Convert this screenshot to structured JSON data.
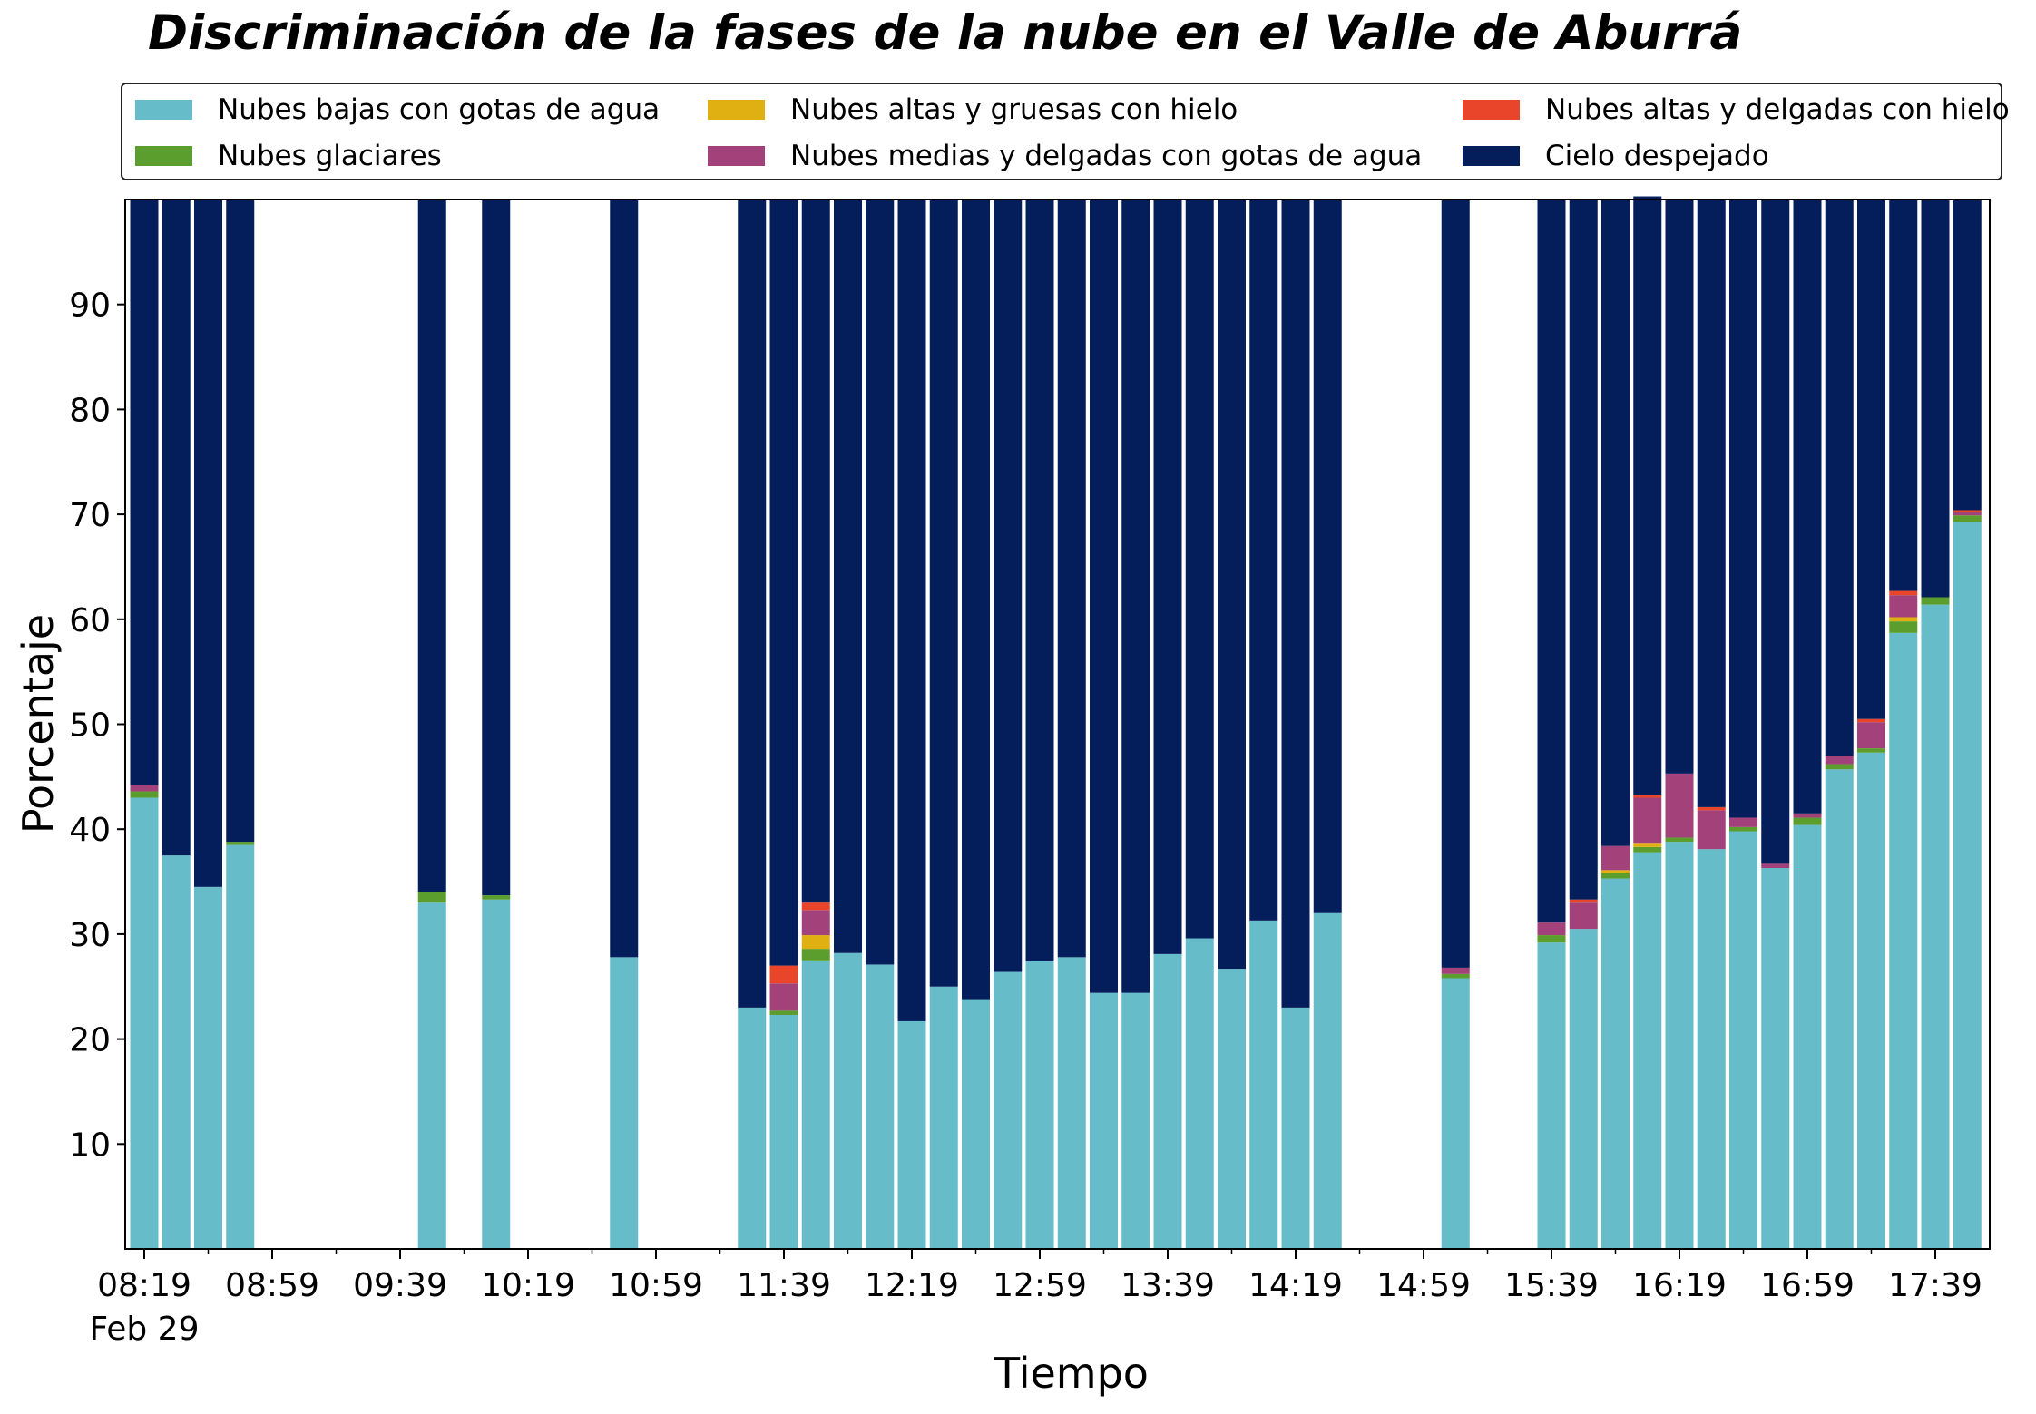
{
  "chart_data": {
    "type": "bar",
    "stacked": true,
    "title": "Discriminación de la fases de la nube en el Valle de Aburrá",
    "xlabel": "Tiempo",
    "ylabel": "Porcentaje",
    "ylim": [
      0,
      100
    ],
    "yticks": [
      10,
      20,
      30,
      40,
      50,
      60,
      70,
      80,
      90
    ],
    "xticks": [
      "08:19",
      "08:59",
      "09:39",
      "10:19",
      "10:59",
      "11:39",
      "12:19",
      "12:59",
      "13:39",
      "14:19",
      "14:59",
      "15:39",
      "16:19",
      "16:59",
      "17:39"
    ],
    "x_sublabel": "Feb 29",
    "grid": false,
    "legend_position": "top",
    "x": [
      "08:19",
      "08:29",
      "08:39",
      "08:49",
      "09:49",
      "10:09",
      "10:49",
      "11:29",
      "11:39",
      "11:49",
      "11:59",
      "12:09",
      "12:19",
      "12:29",
      "12:39",
      "12:49",
      "12:59",
      "13:09",
      "13:19",
      "13:29",
      "13:39",
      "13:49",
      "13:59",
      "14:09",
      "14:19",
      "14:29",
      "15:09",
      "15:39",
      "15:49",
      "15:59",
      "16:09",
      "16:19",
      "16:29",
      "16:39",
      "16:49",
      "16:59",
      "17:09",
      "17:19",
      "17:29",
      "17:39",
      "17:49"
    ],
    "series": [
      {
        "name": "Nubes bajas con gotas de agua",
        "color": "#66bcc9",
        "values": [
          43.0,
          37.5,
          34.5,
          38.5,
          33.0,
          33.3,
          27.8,
          23.0,
          22.3,
          27.5,
          28.2,
          27.1,
          21.7,
          25.0,
          23.8,
          26.4,
          27.4,
          27.8,
          24.4,
          24.4,
          28.1,
          29.6,
          26.7,
          31.3,
          23.0,
          32.0,
          25.8,
          29.2,
          30.5,
          35.3,
          37.8,
          38.8,
          38.1,
          39.8,
          36.3,
          40.4,
          45.7,
          47.3,
          58.7,
          61.4,
          69.3
        ]
      },
      {
        "name": "Nubes glaciares",
        "color": "#5c9e2d",
        "values": [
          0.6,
          0,
          0,
          0.3,
          1.0,
          0.4,
          0,
          0,
          0.4,
          1.1,
          0,
          0,
          0,
          0,
          0,
          0,
          0,
          0,
          0,
          0,
          0,
          0,
          0,
          0,
          0,
          0,
          0.4,
          0.7,
          0,
          0.5,
          0.5,
          0.4,
          0,
          0.4,
          0,
          0.7,
          0.5,
          0.4,
          1.1,
          0.7,
          0.6
        ]
      },
      {
        "name": "Nubes altas y gruesas con hielo",
        "color": "#e0b012",
        "values": [
          0,
          0,
          0,
          0,
          0,
          0,
          0,
          0,
          0,
          1.3,
          0,
          0,
          0,
          0,
          0,
          0,
          0,
          0,
          0,
          0,
          0,
          0,
          0,
          0,
          0,
          0,
          0,
          0,
          0,
          0.3,
          0.4,
          0,
          0,
          0,
          0,
          0,
          0,
          0,
          0.4,
          0,
          0
        ]
      },
      {
        "name": "Nubes medias y delgadas con gotas de agua",
        "color": "#a3427a",
        "values": [
          0.6,
          0,
          0,
          0,
          0,
          0,
          0,
          0,
          2.6,
          2.4,
          0,
          0,
          0,
          0,
          0,
          0,
          0,
          0,
          0,
          0,
          0,
          0,
          0,
          0,
          0,
          0,
          0.6,
          1.2,
          2.5,
          2.3,
          4.3,
          6.1,
          3.7,
          0.9,
          0.4,
          0.4,
          0.8,
          2.5,
          2.1,
          0,
          0.3
        ]
      },
      {
        "name": "Nubes altas y delgadas con hielo",
        "color": "#e8452a",
        "values": [
          0,
          0,
          0,
          0,
          0,
          0,
          0,
          0,
          1.7,
          0.7,
          0,
          0,
          0,
          0,
          0,
          0,
          0,
          0,
          0,
          0,
          0,
          0,
          0,
          0,
          0,
          0,
          0,
          0,
          0.3,
          0,
          0.3,
          0,
          0.3,
          0,
          0,
          0,
          0,
          0.3,
          0.4,
          0,
          0.2
        ]
      },
      {
        "name": "Cielo despejado",
        "color": "#041e5c",
        "values": [
          55.8,
          62.5,
          65.5,
          61.2,
          66.0,
          66.3,
          72.2,
          77.0,
          73.0,
          67.0,
          71.8,
          72.9,
          78.3,
          75.0,
          76.2,
          73.6,
          72.6,
          72.2,
          75.6,
          75.6,
          71.9,
          70.4,
          73.3,
          68.7,
          77.0,
          68.0,
          73.2,
          68.9,
          66.7,
          61.6,
          57.0,
          54.7,
          57.9,
          58.9,
          63.3,
          58.5,
          53.0,
          49.5,
          37.3,
          37.9,
          29.6
        ]
      }
    ]
  }
}
